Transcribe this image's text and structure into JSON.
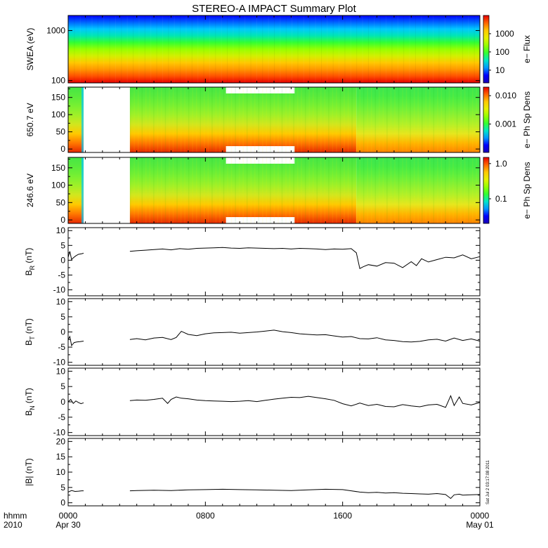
{
  "title": "STEREO-A IMPACT Summary Plot",
  "stamp": "Sat Jul  2 03:17:08 2011",
  "time_axis": {
    "row1_label": "hhmm",
    "row2_label": "2010",
    "ticks": [
      {
        "hour": 0,
        "label": "0000",
        "sublabel": "Apr 30"
      },
      {
        "hour": 8,
        "label": "0800",
        "sublabel": ""
      },
      {
        "hour": 16,
        "label": "1600",
        "sublabel": ""
      },
      {
        "hour": 24,
        "label": "0000",
        "sublabel": "May 01"
      }
    ],
    "range_hours": [
      0,
      24
    ]
  },
  "colors": {
    "colormap": [
      "#1a00b4",
      "#0000ff",
      "#0096ff",
      "#00e6c8",
      "#32ff32",
      "#96ff00",
      "#e6f000",
      "#ffc800",
      "#ff6400",
      "#e60000"
    ],
    "line": "#000000",
    "axis": "#000000"
  },
  "spectrograms": [
    {
      "id": "swea",
      "ylabel": "SWEA (eV)",
      "scale": "log",
      "ylim": [
        90,
        2000
      ],
      "yticks": [
        {
          "value": 100,
          "label": "100"
        },
        {
          "value": 1000,
          "label": "1000"
        }
      ],
      "colorbar": {
        "label": "e− Flux",
        "scale": "log",
        "range": [
          2,
          10000
        ],
        "ticks": [
          {
            "value": 10,
            "label": "10"
          },
          {
            "value": 100,
            "label": "100"
          },
          {
            "value": 1000,
            "label": "1000"
          }
        ]
      }
    },
    {
      "id": "pad650",
      "ylabel": "650.7 eV",
      "scale": "linear",
      "ylim": [
        -10,
        180
      ],
      "yticks": [
        {
          "value": 0,
          "label": "0"
        },
        {
          "value": 50,
          "label": "50"
        },
        {
          "value": 100,
          "label": "100"
        },
        {
          "value": 150,
          "label": "150"
        }
      ],
      "gap_hours": [
        [
          0.9,
          3.6
        ]
      ],
      "colorbar": {
        "label": "e− Ph Sp Dens",
        "scale": "log",
        "range": [
          0.0001,
          0.02
        ],
        "ticks": [
          {
            "value": 0.001,
            "label": "0.001"
          },
          {
            "value": 0.01,
            "label": "0.010"
          }
        ]
      }
    },
    {
      "id": "pad246",
      "ylabel": "246.6 eV",
      "scale": "linear",
      "ylim": [
        -10,
        180
      ],
      "yticks": [
        {
          "value": 0,
          "label": "0"
        },
        {
          "value": 50,
          "label": "50"
        },
        {
          "value": 100,
          "label": "100"
        },
        {
          "value": 150,
          "label": "150"
        }
      ],
      "gap_hours": [
        [
          0.9,
          3.6
        ]
      ],
      "colorbar": {
        "label": "e− Ph Sp Dens",
        "scale": "log",
        "range": [
          0.02,
          1.5
        ],
        "ticks": [
          {
            "value": 0.1,
            "label": "0.1"
          },
          {
            "value": 1.0,
            "label": "1.0"
          }
        ]
      }
    }
  ],
  "chart_data": [
    {
      "type": "line",
      "id": "br",
      "ylabel": "B",
      "ysub": "R",
      "yunit": "(nT)",
      "ylim": [
        -12,
        11
      ],
      "yticks": [
        -10,
        -5,
        0,
        5,
        10
      ],
      "segments": [
        {
          "x": [
            0.0,
            0.1,
            0.2,
            0.3,
            0.45,
            0.6,
            0.8,
            0.9
          ],
          "y": [
            1.0,
            3.0,
            0.2,
            0.8,
            1.5,
            2.0,
            2.2,
            2.4
          ]
        },
        {
          "x": [
            3.6,
            4.0,
            4.5,
            5.0,
            5.5,
            6.0,
            6.5,
            7.0,
            7.5,
            8.0,
            8.5,
            9.0,
            9.5,
            10.0,
            10.5,
            11.0,
            11.5,
            12.0,
            12.5,
            13.0,
            13.5,
            14.0,
            14.5,
            15.0,
            15.5,
            16.0,
            16.5,
            16.8,
            17.0,
            17.2,
            17.5,
            18.0,
            18.5,
            19.0,
            19.5,
            20.0,
            20.3,
            20.6,
            21.0,
            21.5,
            22.0,
            22.5,
            23.0,
            23.5,
            24.0
          ],
          "y": [
            3.0,
            3.2,
            3.4,
            3.6,
            3.8,
            3.5,
            3.9,
            3.7,
            4.0,
            4.1,
            4.2,
            4.3,
            4.1,
            4.0,
            4.2,
            4.1,
            4.0,
            3.9,
            4.0,
            3.8,
            4.0,
            3.9,
            3.8,
            3.6,
            3.8,
            3.7,
            3.9,
            2.5,
            -2.8,
            -2.2,
            -1.5,
            -2.0,
            -0.8,
            -1.0,
            -2.5,
            -0.5,
            -1.8,
            0.5,
            -0.6,
            0.2,
            1.0,
            0.8,
            1.8,
            0.5,
            1.2
          ]
        }
      ]
    },
    {
      "type": "line",
      "id": "bt",
      "ylabel": "B",
      "ysub": "T",
      "yunit": "(nT)",
      "ylim": [
        -11,
        11
      ],
      "yticks": [
        -10,
        -5,
        0,
        5,
        10
      ],
      "segments": [
        {
          "x": [
            0.0,
            0.1,
            0.2,
            0.35,
            0.5,
            0.7,
            0.9
          ],
          "y": [
            -2.5,
            -1.5,
            -4.5,
            -3.5,
            -3.3,
            -3.2,
            -3.0
          ]
        },
        {
          "x": [
            3.6,
            4.0,
            4.5,
            5.0,
            5.5,
            6.0,
            6.3,
            6.6,
            7.0,
            7.5,
            8.0,
            8.5,
            9.0,
            9.5,
            10.0,
            10.5,
            11.0,
            11.5,
            12.0,
            12.5,
            13.0,
            13.5,
            14.0,
            14.5,
            15.0,
            15.5,
            16.0,
            16.5,
            17.0,
            17.5,
            18.0,
            18.5,
            19.0,
            19.5,
            20.0,
            20.5,
            21.0,
            21.5,
            22.0,
            22.5,
            23.0,
            23.5,
            24.0
          ],
          "y": [
            -2.5,
            -2.2,
            -2.6,
            -2.0,
            -1.8,
            -2.5,
            -1.8,
            0.2,
            -0.8,
            -1.2,
            -0.6,
            -0.3,
            -0.2,
            -0.1,
            -0.4,
            -0.2,
            0.0,
            0.3,
            0.6,
            0.1,
            -0.2,
            -0.6,
            -0.8,
            -1.0,
            -0.9,
            -1.3,
            -1.7,
            -1.5,
            -2.2,
            -2.3,
            -1.9,
            -2.6,
            -2.8,
            -3.2,
            -3.3,
            -3.1,
            -2.6,
            -2.4,
            -3.0,
            -2.0,
            -2.8,
            -2.3,
            -3.0
          ]
        }
      ]
    },
    {
      "type": "line",
      "id": "bn",
      "ylabel": "B",
      "ysub": "N",
      "yunit": "(nT)",
      "ylim": [
        -11,
        11
      ],
      "yticks": [
        -10,
        -5,
        0,
        5,
        10
      ],
      "segments": [
        {
          "x": [
            0.0,
            0.15,
            0.3,
            0.45,
            0.6,
            0.75,
            0.9
          ],
          "y": [
            0.0,
            0.8,
            -0.5,
            0.3,
            -0.2,
            -0.6,
            -0.3
          ]
        },
        {
          "x": [
            3.6,
            4.0,
            4.5,
            5.0,
            5.5,
            5.8,
            6.0,
            6.3,
            6.6,
            7.0,
            7.5,
            8.0,
            8.5,
            9.0,
            9.5,
            10.0,
            10.5,
            11.0,
            11.5,
            12.0,
            12.5,
            13.0,
            13.5,
            14.0,
            14.5,
            15.0,
            15.5,
            16.0,
            16.5,
            17.0,
            17.5,
            18.0,
            18.5,
            19.0,
            19.5,
            20.0,
            20.5,
            21.0,
            21.5,
            22.0,
            22.3,
            22.5,
            22.8,
            23.0,
            23.5,
            24.0
          ],
          "y": [
            0.4,
            0.6,
            0.5,
            0.8,
            1.2,
            -0.5,
            0.8,
            1.6,
            1.2,
            1.0,
            0.6,
            0.4,
            0.3,
            0.2,
            0.1,
            0.2,
            0.4,
            0.1,
            0.5,
            0.9,
            1.2,
            1.5,
            1.4,
            1.8,
            1.4,
            1.0,
            0.5,
            -0.6,
            -1.3,
            -0.4,
            -1.2,
            -0.8,
            -1.5,
            -1.6,
            -0.9,
            -1.3,
            -1.6,
            -1.0,
            -0.8,
            -1.8,
            2.0,
            -1.2,
            1.6,
            -0.5,
            -1.0,
            -0.2
          ]
        }
      ]
    },
    {
      "type": "line",
      "id": "bmag",
      "ylabel": "|B| (nT)",
      "ysub": "",
      "yunit": "",
      "ylim": [
        -1,
        21
      ],
      "yticks": [
        0,
        5,
        10,
        15,
        20
      ],
      "segments": [
        {
          "x": [
            0.0,
            0.2,
            0.4,
            0.6,
            0.8,
            0.9
          ],
          "y": [
            3.5,
            4.0,
            3.7,
            3.8,
            3.9,
            3.9
          ]
        },
        {
          "x": [
            3.6,
            4.0,
            5.0,
            6.0,
            7.0,
            8.0,
            9.0,
            10.0,
            11.0,
            12.0,
            13.0,
            14.0,
            15.0,
            16.0,
            16.5,
            17.0,
            17.5,
            18.0,
            18.5,
            19.0,
            19.5,
            20.0,
            20.5,
            21.0,
            21.5,
            22.0,
            22.3,
            22.5,
            22.8,
            23.0,
            23.5,
            24.0
          ],
          "y": [
            3.9,
            4.0,
            4.1,
            4.0,
            4.2,
            4.3,
            4.4,
            4.3,
            4.2,
            4.1,
            4.0,
            4.2,
            4.4,
            4.3,
            3.9,
            3.5,
            3.3,
            3.4,
            3.2,
            3.3,
            3.1,
            3.0,
            2.9,
            2.8,
            3.0,
            2.7,
            1.4,
            2.6,
            2.8,
            2.5,
            2.6,
            2.7
          ]
        }
      ]
    }
  ]
}
